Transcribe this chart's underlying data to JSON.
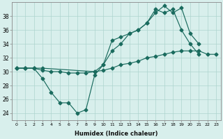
{
  "xlabel": "Humidex (Indice chaleur)",
  "line1_x": [
    0,
    1,
    2,
    3,
    4,
    5,
    6,
    7,
    8,
    9,
    10,
    11,
    12,
    13,
    14,
    15,
    16,
    17,
    18,
    19,
    20,
    21
  ],
  "line1_y": [
    30.5,
    30.5,
    30.5,
    29.0,
    27.0,
    25.5,
    25.5,
    24.0,
    24.5,
    29.5,
    31.0,
    34.5,
    35.0,
    35.5,
    36.0,
    37.0,
    39.0,
    38.5,
    39.0,
    36.0,
    34.0,
    32.5
  ],
  "line2_x": [
    0,
    1,
    2,
    3,
    4,
    5,
    6,
    7,
    8,
    9,
    10,
    11,
    12,
    13,
    14,
    15,
    16,
    17,
    18,
    19,
    20,
    21,
    22,
    23
  ],
  "line2_y": [
    30.5,
    30.5,
    30.5,
    30.2,
    30.0,
    30.0,
    29.8,
    29.8,
    29.8,
    30.0,
    30.2,
    30.5,
    31.0,
    31.2,
    31.5,
    32.0,
    32.2,
    32.5,
    32.8,
    33.0,
    33.0,
    33.0,
    32.5,
    32.5
  ],
  "line3_x": [
    0,
    1,
    2,
    3,
    9,
    10,
    11,
    12,
    13,
    14,
    15,
    16,
    17,
    18,
    19,
    20,
    21,
    22,
    23
  ],
  "line3_y": [
    30.5,
    30.5,
    30.5,
    30.5,
    30.0,
    31.0,
    33.0,
    34.0,
    35.5,
    36.0,
    37.0,
    38.5,
    39.5,
    38.5,
    39.2,
    35.5,
    34.0,
    null,
    null
  ],
  "line_color": "#1a6b5e",
  "bg_color": "#d8efec",
  "grid_color": "#aed4ce",
  "ylim": [
    23,
    40
  ],
  "xlim": [
    -0.5,
    23.5
  ],
  "yticks": [
    24,
    26,
    28,
    30,
    32,
    34,
    36,
    38
  ],
  "xticks": [
    0,
    1,
    2,
    3,
    4,
    5,
    6,
    7,
    8,
    9,
    10,
    11,
    12,
    13,
    14,
    15,
    16,
    17,
    18,
    19,
    20,
    21,
    22,
    23
  ],
  "markersize": 2.5,
  "linewidth": 0.85
}
